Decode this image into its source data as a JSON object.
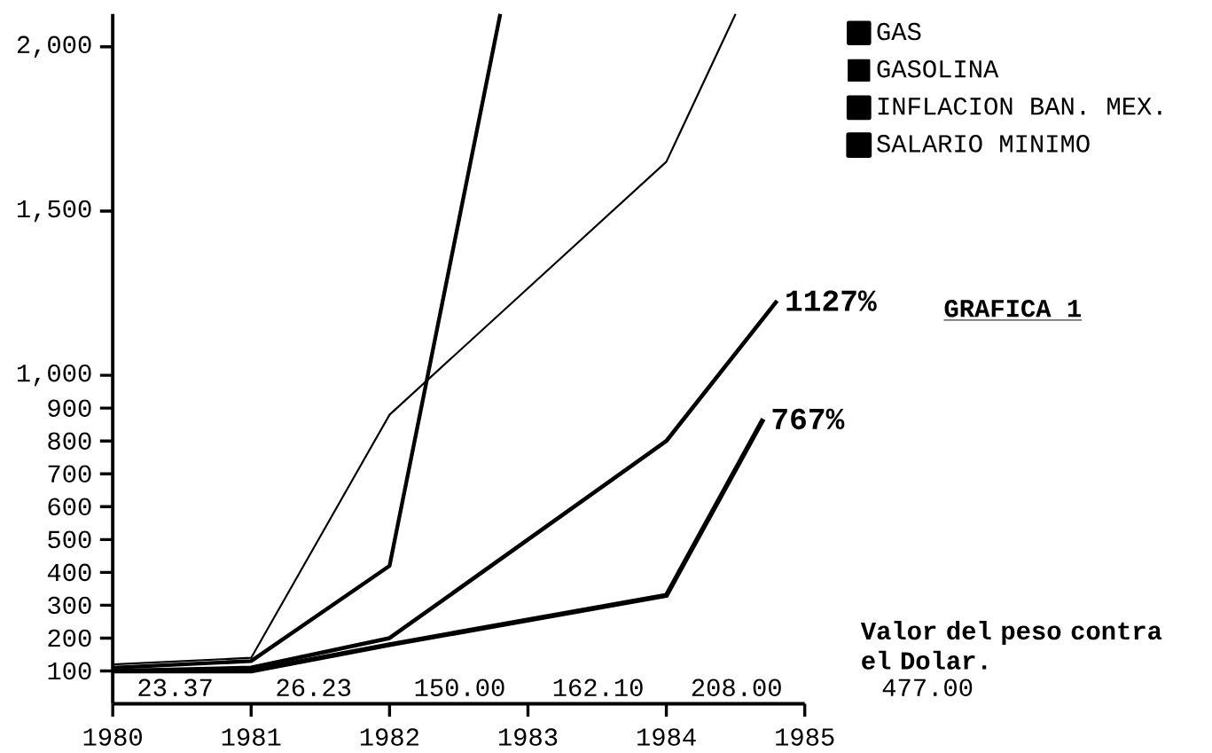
{
  "chart_data": {
    "type": "line",
    "title": "GRAFICA 1",
    "series": [
      {
        "name": "GAS",
        "color": "#000000",
        "x": [
          1980,
          1981,
          1982,
          1982.8
        ],
        "values": [
          110,
          130,
          420,
          2100
        ]
      },
      {
        "name": "GASOLINA",
        "color": "#000000",
        "x": [
          1980,
          1981,
          1982,
          1984,
          1984.5
        ],
        "values": [
          120,
          140,
          880,
          1650,
          2100
        ]
      },
      {
        "name": "INFLACION BAN. MEX.",
        "color": "#000000",
        "x": [
          1980,
          1981,
          1982,
          1984,
          1984.8
        ],
        "values": [
          100,
          110,
          200,
          800,
          1227
        ]
      },
      {
        "name": "SALARIO MINIMO",
        "color": "#000000",
        "x": [
          1980,
          1981,
          1982,
          1984,
          1984.7
        ],
        "values": [
          100,
          100,
          180,
          330,
          867
        ]
      }
    ],
    "xlim": [
      1980,
      1985
    ],
    "xticks": [
      1980,
      1981,
      1982,
      1983,
      1984,
      1985
    ],
    "ylim": [
      0,
      2100
    ],
    "yticks": [
      100,
      200,
      300,
      400,
      500,
      600,
      700,
      800,
      900,
      {
        "value": 1000,
        "label": "1,000"
      },
      {
        "value": 1500,
        "label": "1,500"
      },
      {
        "value": 2000,
        "label": "2,000"
      }
    ],
    "annotations": [
      {
        "text": "1127%",
        "x": 1984.8,
        "y": 1227
      },
      {
        "text": "767%",
        "x": 1984.7,
        "y": 867
      },
      "Valor del peso contra el Dolar.",
      "23.37",
      "26.23",
      "150.00",
      "162.10",
      "208.00",
      "477.00"
    ],
    "legend": "top right",
    "marker": "none",
    "line_style": "solid",
    "grid": false
  }
}
